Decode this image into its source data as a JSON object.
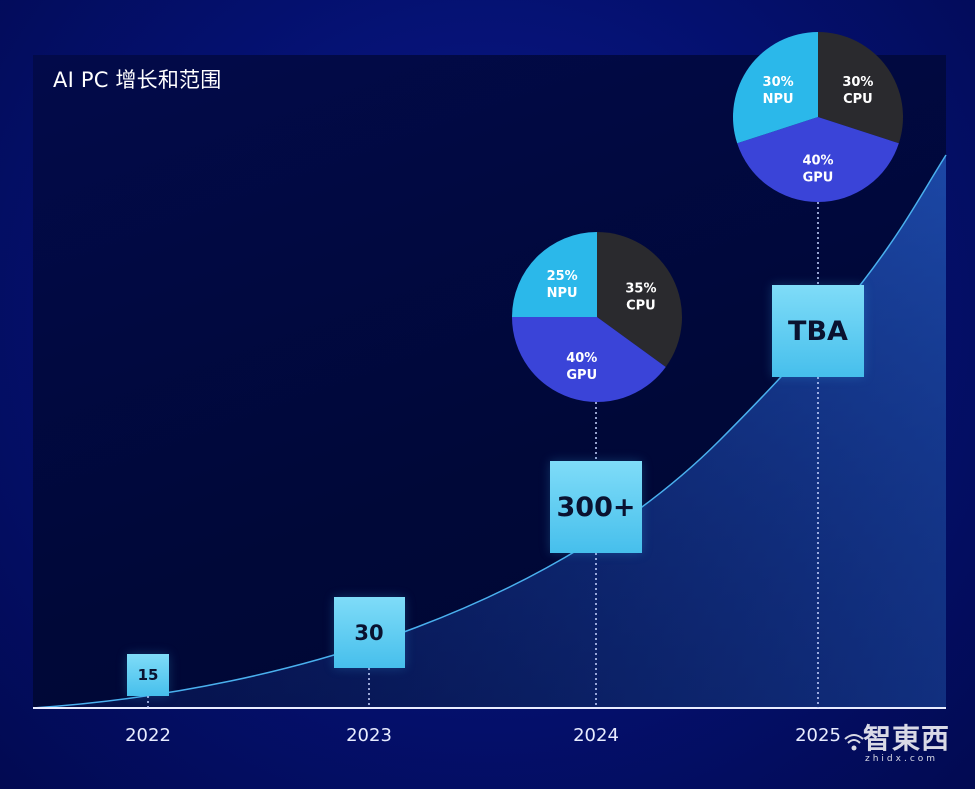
{
  "title": "AI PC 增长和范围",
  "chart_data": {
    "type": "area",
    "title": "AI PC 增长和范围",
    "x": [
      "2022",
      "2023",
      "2024",
      "2025"
    ],
    "values": [
      15,
      30,
      300,
      null
    ],
    "value_labels": [
      "15",
      "30",
      "300+",
      "TBA"
    ],
    "pies": [
      {
        "year": "2024",
        "slices": [
          {
            "label": "CPU",
            "percent": 35,
            "display": "35%",
            "color": "#2a2a2e"
          },
          {
            "label": "GPU",
            "percent": 40,
            "display": "40%",
            "color": "#3a44d8"
          },
          {
            "label": "NPU",
            "percent": 25,
            "display": "25%",
            "color": "#2bb8ea"
          }
        ]
      },
      {
        "year": "2025",
        "slices": [
          {
            "label": "CPU",
            "percent": 30,
            "display": "30%",
            "color": "#2a2a2e"
          },
          {
            "label": "GPU",
            "percent": 40,
            "display": "40%",
            "color": "#3a44d8"
          },
          {
            "label": "NPU",
            "percent": 30,
            "display": "30%",
            "color": "#2bb8ea"
          }
        ]
      }
    ],
    "grid": false,
    "legend": "none"
  },
  "watermark": {
    "main": "智東西",
    "sub": "zhidx.com"
  },
  "colors": {
    "background": "#04106e",
    "panel": "#000838",
    "box": "#5cc8f0",
    "area": "#1a3aa8",
    "curve": "#3aa8e8"
  }
}
